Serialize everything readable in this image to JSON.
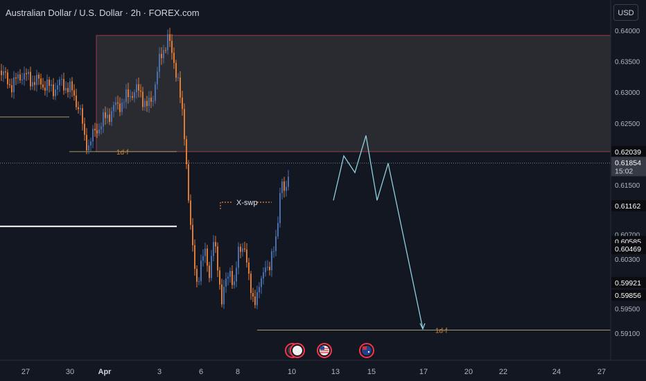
{
  "header": {
    "title": "Australian Dollar / U.S. Dollar · 2h · FOREX.com",
    "currency_button": "USD"
  },
  "colors": {
    "background": "#131722",
    "up": "#4a6fae",
    "down": "#e07b35",
    "zone_fill": "#2a2b30",
    "zone_border": "#9c3b46",
    "fib_line": "#a39a6a",
    "fib_label": "#d18a3a",
    "swp_line": "#e07b35",
    "projection": "#8fd0e0",
    "text": "#b2b5be"
  },
  "chart_data": {
    "type": "candlestick",
    "price_axis": {
      "ticks": [
        "0.64000",
        "0.63500",
        "0.63000",
        "0.62500",
        "0.61500",
        "0.60700",
        "0.60300",
        "0.59500",
        "0.59100"
      ],
      "ylim": [
        0.5895,
        0.6412
      ]
    },
    "price_labels": [
      {
        "value": "0.62039",
        "price": 0.62039
      },
      {
        "value": "0.62039",
        "price": 0.6178
      },
      {
        "value": "0.61854",
        "price": 0.61854,
        "sub": "15:02",
        "current": true
      },
      {
        "value": "0.61162",
        "price": 0.61162
      },
      {
        "value": "0.60585",
        "price": 0.60585
      },
      {
        "value": "0.60469",
        "price": 0.60469
      },
      {
        "value": "0.59921",
        "price": 0.59921
      },
      {
        "value": "0.59856",
        "price": 0.59715
      }
    ],
    "time_axis": [
      "27",
      "30",
      "Apr",
      "3",
      "6",
      "8",
      "10",
      "13",
      "15",
      "17",
      "20",
      "22",
      "24",
      "27"
    ],
    "annotations": {
      "supply_zone": {
        "top": 0.6392,
        "bottom": 0.62039
      },
      "fib_upper": {
        "label": "1d·f",
        "price": 0.62039
      },
      "fib_lower": {
        "label": "1d·f",
        "price": 0.5915
      },
      "x_swp": {
        "label": "X-swp",
        "price": 0.6122
      },
      "left_line_high": 0.626,
      "white_line": 0.6083,
      "current_price": 0.61854,
      "projection_path": [
        0.6125,
        0.6197,
        0.617,
        0.623,
        0.6125,
        0.6185,
        0.5917
      ]
    },
    "events": [
      "us-flag-event-icon",
      "us-flag-event-icon",
      "au-flag-event-icon"
    ]
  }
}
